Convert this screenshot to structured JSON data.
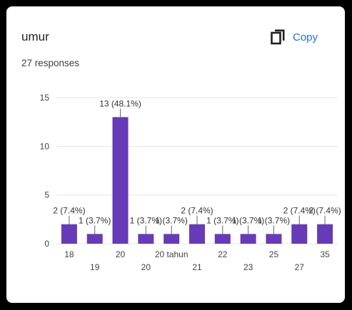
{
  "question": {
    "title": "umur",
    "responses": "27 responses",
    "copy_label": "Copy"
  },
  "colors": {
    "bar": "#673ab7",
    "grid": "#e6e6e6",
    "axis_text": "#444444",
    "label_text": "#333333",
    "accent": "#1a73e8"
  },
  "icons": {
    "copy": "copy-icon"
  },
  "chart_data": {
    "type": "bar",
    "title": "umur",
    "xlabel": "",
    "ylabel": "",
    "ylim": [
      0,
      15
    ],
    "yticks": [
      0,
      5,
      10,
      15
    ],
    "grid": true,
    "categories": [
      "18",
      "19",
      "20",
      "20",
      "20 tahun",
      "21",
      "22",
      "23",
      "25",
      "27",
      "35"
    ],
    "values": [
      2,
      1,
      13,
      1,
      1,
      2,
      1,
      1,
      1,
      2,
      2
    ],
    "data_labels": [
      "2 (7.4%)",
      "1 (3.7%)",
      "13 (48.1%)",
      "1 (3.7%)",
      "1 (3.7%)",
      "2 (7.4%)",
      "1 (3.7%)",
      "1 (3.7%)",
      "1 (3.7%)",
      "2 (7.4%)",
      "2 (7.4%)"
    ]
  }
}
